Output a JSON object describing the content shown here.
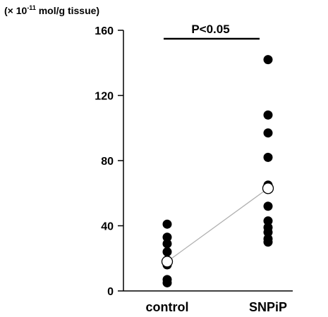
{
  "chart_data": {
    "type": "scatter",
    "title": "",
    "ylabel_prefix": "(× 10",
    "ylabel_exponent": "-11",
    "ylabel_suffix": " mol/g tissue)",
    "ylim": [
      0,
      160
    ],
    "yticks": [
      0,
      40,
      80,
      120,
      160
    ],
    "categories": [
      "control",
      "SNPiP"
    ],
    "series": [
      {
        "category": "control",
        "values": [
          41,
          33,
          29,
          24,
          19,
          16,
          7,
          5
        ]
      },
      {
        "category": "SNPiP",
        "values": [
          142,
          108,
          97,
          82,
          65,
          52,
          43,
          39,
          36,
          32,
          30
        ]
      }
    ],
    "means": [
      18,
      63
    ],
    "significance": {
      "label": "P<0.05",
      "from": "control",
      "to": "SNPiP"
    },
    "colors": {
      "points": "#000000",
      "mean_fill": "#ffffff",
      "mean_line": "#b0b0b0",
      "axis": "#000000"
    },
    "grid": false
  }
}
